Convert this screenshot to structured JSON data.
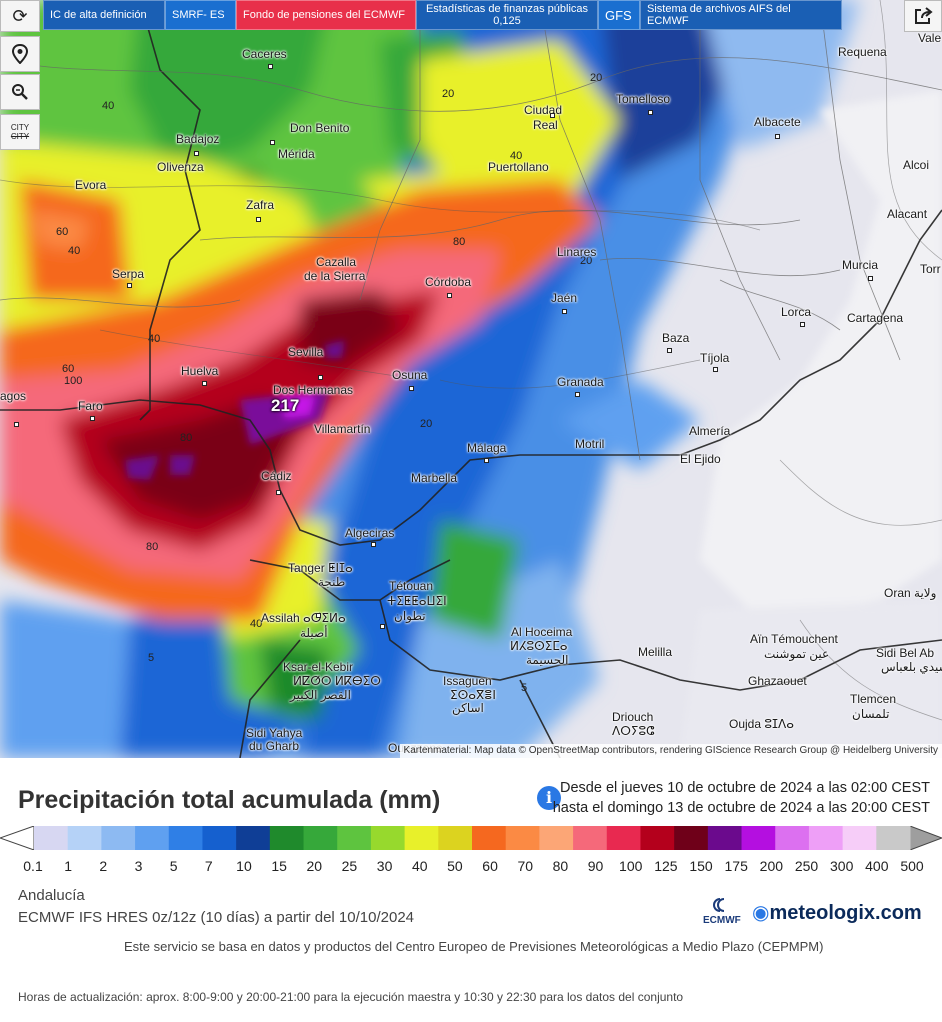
{
  "toolbar": {
    "refresh_icon": "refresh-icon",
    "location_icon": "location-pin-icon",
    "zoom_icon": "zoom-icon",
    "city_label": "CITY",
    "city_sub": "CITY",
    "share_icon": "share-icon",
    "buttons": [
      {
        "label": "IC de alta definición",
        "color": "#1a5fb4"
      },
      {
        "label": "SMRF- ES",
        "color": "#1a6fd0"
      },
      {
        "label": "Fondo de pensiones del ECMWF",
        "color": "#e8304a"
      },
      {
        "label": "Estadísticas de finanzas públicas",
        "sub": "0,125",
        "color": "#1a5fb4"
      },
      {
        "label": "GFS",
        "color": "#1a6fd0"
      },
      {
        "label": "Sistema de archivos AIFS del ECMWF",
        "color": "#1a5fb4"
      }
    ]
  },
  "map": {
    "max_value": "217",
    "attribution": "Kartenmaterial: Map data © OpenStreetMap contributors, rendering GIScience Research Group @ Heidelberg University",
    "cities": [
      {
        "name": "Caceres"
      },
      {
        "name": "Requena"
      },
      {
        "name": "Vale"
      },
      {
        "name": "Ciudad"
      },
      {
        "name": "Real"
      },
      {
        "name": "Tomelloso"
      },
      {
        "name": "Badajoz"
      },
      {
        "name": "Don Benito"
      },
      {
        "name": "Albacete"
      },
      {
        "name": "Mérida"
      },
      {
        "name": "Olivenza"
      },
      {
        "name": "Puertollano"
      },
      {
        "name": "Alcoi"
      },
      {
        "name": "Evora"
      },
      {
        "name": "Zafra"
      },
      {
        "name": "Alacant"
      },
      {
        "name": "Cazalla"
      },
      {
        "name": "de la Sierra"
      },
      {
        "name": "Linares"
      },
      {
        "name": "Serpa"
      },
      {
        "name": "Córdoba"
      },
      {
        "name": "Murcia"
      },
      {
        "name": "Torr"
      },
      {
        "name": "Jaén"
      },
      {
        "name": "Lorca"
      },
      {
        "name": "Cartagena"
      },
      {
        "name": "Baza"
      },
      {
        "name": "Sevilla"
      },
      {
        "name": "Tíjola"
      },
      {
        "name": "Huelva"
      },
      {
        "name": "Dos Hermanas"
      },
      {
        "name": "Osuna"
      },
      {
        "name": "Granada"
      },
      {
        "name": "agos"
      },
      {
        "name": "Faro"
      },
      {
        "name": "Almería"
      },
      {
        "name": "Villamartín"
      },
      {
        "name": "Málaga"
      },
      {
        "name": "Motril"
      },
      {
        "name": "El Ejido"
      },
      {
        "name": "Cádiz"
      },
      {
        "name": "Marbella"
      },
      {
        "name": "Algeciras"
      },
      {
        "name": "Tanger ⵟⵏⵊⴰ"
      },
      {
        "name": "طنجة"
      },
      {
        "name": "Tétouan"
      },
      {
        "name": "ⵜⵉⵟⵟⴰⵡⵉⵏ"
      },
      {
        "name": "تطوان"
      },
      {
        "name": "Assilah ⴰⵚⵉⵍⴰ"
      },
      {
        "name": "أصيلة"
      },
      {
        "name": "Oran ولاية"
      },
      {
        "name": "Al Hoceima"
      },
      {
        "name": "ⵍⵃⵓⵙⵉⵎⴰ"
      },
      {
        "name": "الحسيمة"
      },
      {
        "name": "Aïn Témouchent"
      },
      {
        "name": "عين تموشنت"
      },
      {
        "name": "Melilla"
      },
      {
        "name": "Sidi Bel Ab"
      },
      {
        "name": "سيدي بلعباس"
      },
      {
        "name": "Ksar-el-Kebir"
      },
      {
        "name": "ⵍⵇⵚⵔ ⵍⴽⴱⵉⵔ"
      },
      {
        "name": "القصر الكبير"
      },
      {
        "name": "Issaguen"
      },
      {
        "name": "ⵉⵙⴰⴳⴻⵏ"
      },
      {
        "name": "اساكن"
      },
      {
        "name": "Ghazaouet"
      },
      {
        "name": "Tlemcen"
      },
      {
        "name": "تلمسان"
      },
      {
        "name": "Driouch"
      },
      {
        "name": "ⴷⵔⵢⵓⵛ"
      },
      {
        "name": "Oujda ⵓⵊⴷⴰ"
      },
      {
        "name": "Sidi Yahya"
      },
      {
        "name": "du Gharb"
      },
      {
        "name": "Ouezzane"
      }
    ],
    "contours": [
      "40",
      "40",
      "20",
      "20",
      "40",
      "20",
      "60",
      "40",
      "80",
      "60",
      "100",
      "40",
      "80",
      "20",
      "80",
      "40",
      "5",
      "5"
    ]
  },
  "legend": {
    "title": "Precipitación total acumulada (mm)",
    "info_icon": "info-icon",
    "range_from": "Desde el jueves 10 de octubre de 2024 a  las 02:00  CEST",
    "range_to": "hasta el domingo 13 de octubre de 2024 a  las 20:00  CEST",
    "ticks": [
      "0.1",
      "1",
      "2",
      "3",
      "5",
      "7",
      "10",
      "15",
      "20",
      "25",
      "30",
      "40",
      "50",
      "60",
      "70",
      "80",
      "90",
      "100",
      "125",
      "150",
      "175",
      "200",
      "250",
      "300",
      "400",
      "500"
    ],
    "colors": [
      "#d7d7f2",
      "#b5d2f7",
      "#8dbaf2",
      "#5fa0f0",
      "#2f7fe6",
      "#1560cf",
      "#0f3e96",
      "#1f8a2c",
      "#36a83a",
      "#5ec43f",
      "#97d92d",
      "#e8f02a",
      "#dcd31f",
      "#f5681f",
      "#fb8a44",
      "#fca676",
      "#f5697a",
      "#e82950",
      "#b4001c",
      "#6f0019",
      "#6b0a8d",
      "#b40fe0",
      "#dc70f0",
      "#ee9ff7",
      "#f6cdf8",
      "#c9c9c9"
    ],
    "region": "Andalucía",
    "model": "ECMWF IFS HRES 0z/12z (10 días) a partir del 10/10/2024",
    "ecmwf_logo_text": "ECMWF",
    "meteologix_logo_text": "meteologix.com",
    "service_note": "Este servicio se basa en datos y productos del Centro Europeo de Previsiones Meteorológicas a Medio Plazo (CEPMPM)",
    "update_note": "Horas de actualización: aprox. 8:00-9:00 y 20:00-21:00 para la ejecución maestra y 10:30 y 22:30 para los datos del conjunto"
  }
}
